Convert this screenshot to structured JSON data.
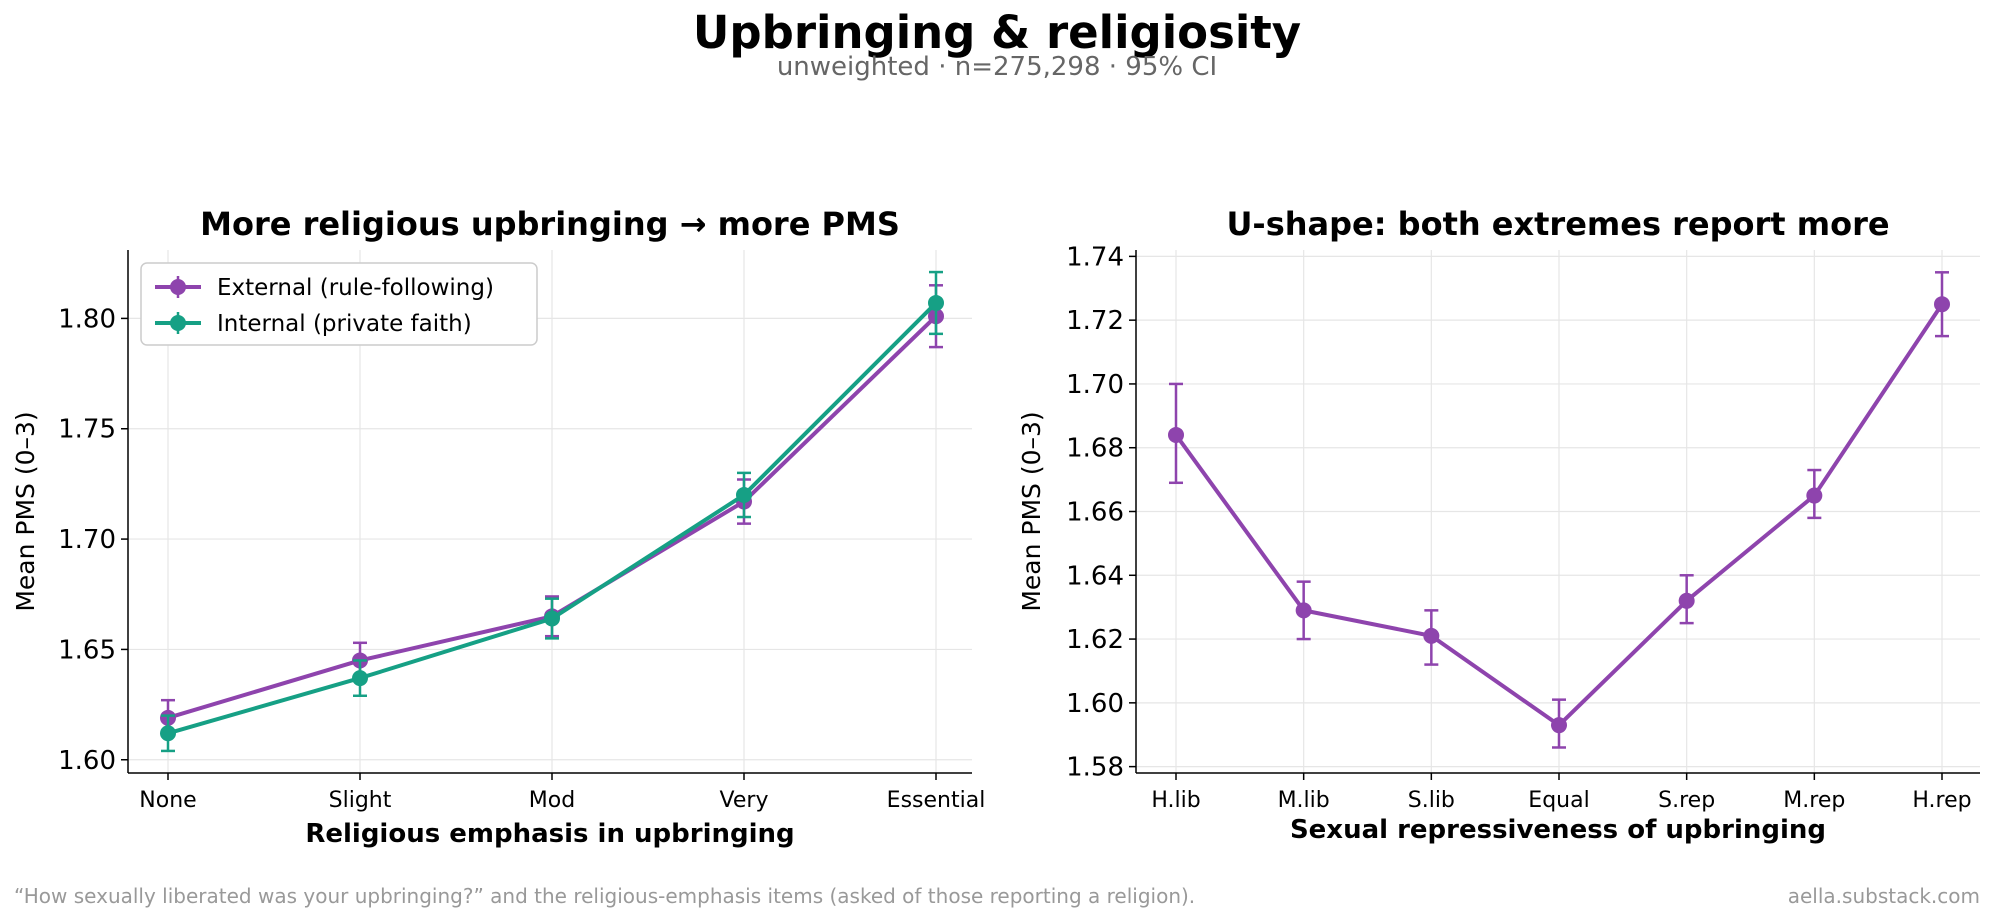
{
  "title": "Upbringing & religiosity",
  "subtitle": "unweighted · n=275,298 · 95% CI",
  "footnote": "“How sexually liberated was your upbringing?” and the religious-emphasis items (asked of those reporting a religion).",
  "credit": "aella.substack.com",
  "colors": {
    "purple": "#8e44ad",
    "teal": "#16a085"
  },
  "chart_data": [
    {
      "type": "line",
      "title": "More religious upbringing → more PMS",
      "xlabel": "Religious emphasis in upbringing",
      "ylabel": "Mean PMS (0–3)",
      "categories": [
        "None",
        "Slight",
        "Mod",
        "Very",
        "Essential"
      ],
      "ylim": [
        1.594,
        1.831
      ],
      "yticks": [
        "1.60",
        "1.65",
        "1.70",
        "1.75",
        "1.80"
      ],
      "grid": true,
      "legend": "top-left",
      "series": [
        {
          "name": "External (rule-following)",
          "color": "#8e44ad",
          "values": [
            1.619,
            1.645,
            1.665,
            1.717,
            1.801
          ],
          "ci": [
            [
              1.611,
              1.627
            ],
            [
              1.637,
              1.653
            ],
            [
              1.656,
              1.674
            ],
            [
              1.707,
              1.727
            ],
            [
              1.787,
              1.815
            ]
          ]
        },
        {
          "name": "Internal (private faith)",
          "color": "#16a085",
          "values": [
            1.612,
            1.637,
            1.664,
            1.72,
            1.807
          ],
          "ci": [
            [
              1.604,
              1.62
            ],
            [
              1.629,
              1.645
            ],
            [
              1.655,
              1.673
            ],
            [
              1.71,
              1.73
            ],
            [
              1.793,
              1.821
            ]
          ]
        }
      ]
    },
    {
      "type": "line",
      "title": "U-shape: both extremes report more",
      "xlabel": "Sexual repressiveness of upbringing",
      "ylabel": "Mean PMS (0–3)",
      "categories": [
        "H.lib",
        "M.lib",
        "S.lib",
        "Equal",
        "S.rep",
        "M.rep",
        "H.rep"
      ],
      "ylim": [
        1.578,
        1.742
      ],
      "yticks": [
        "1.58",
        "1.60",
        "1.62",
        "1.64",
        "1.66",
        "1.68",
        "1.70",
        "1.72",
        "1.74"
      ],
      "grid": true,
      "series": [
        {
          "color": "#8e44ad",
          "values": [
            1.684,
            1.629,
            1.621,
            1.593,
            1.632,
            1.665,
            1.725
          ],
          "ci": [
            [
              1.669,
              1.7
            ],
            [
              1.62,
              1.638
            ],
            [
              1.612,
              1.629
            ],
            [
              1.586,
              1.601
            ],
            [
              1.625,
              1.64
            ],
            [
              1.658,
              1.673
            ],
            [
              1.715,
              1.735
            ]
          ]
        }
      ]
    }
  ]
}
